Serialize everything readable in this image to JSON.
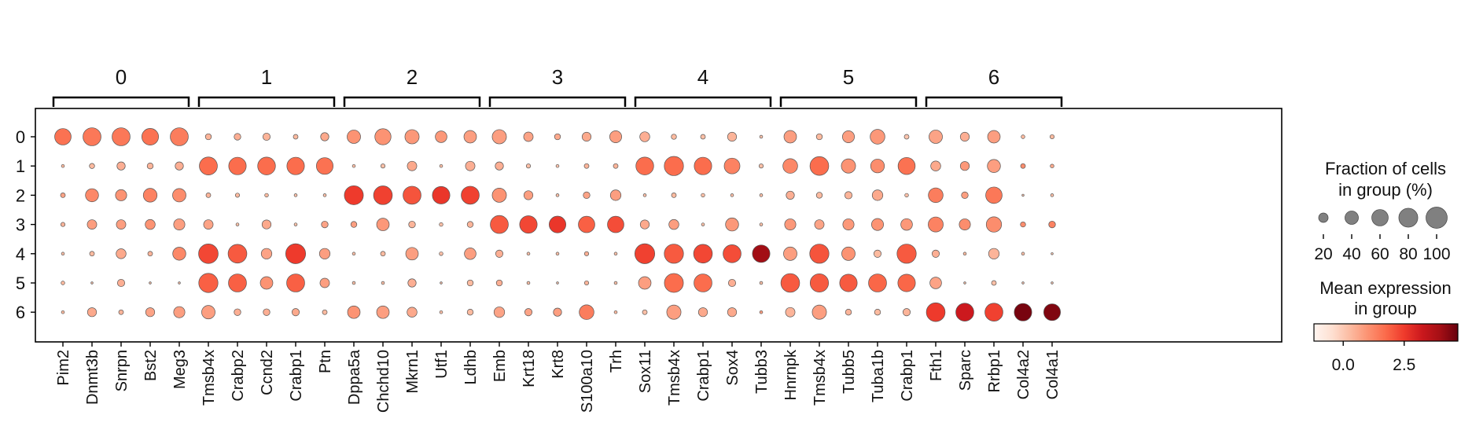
{
  "chart_data": {
    "type": "dotplot",
    "groups": [
      "0",
      "1",
      "2",
      "3",
      "4",
      "5",
      "6"
    ],
    "gene_groups": [
      {
        "label": "0",
        "genes": [
          "Pim2",
          "Dnmt3b",
          "Snrpn",
          "Bst2",
          "Meg3"
        ]
      },
      {
        "label": "1",
        "genes": [
          "Tmsb4x",
          "Crabp2",
          "Ccnd2",
          "Crabp1",
          "Ptn"
        ]
      },
      {
        "label": "2",
        "genes": [
          "Dppa5a",
          "Chchd10",
          "Mkrn1",
          "Utf1",
          "Ldhb"
        ]
      },
      {
        "label": "3",
        "genes": [
          "Emb",
          "Krt18",
          "Krt8",
          "S100a10",
          "Trh"
        ]
      },
      {
        "label": "4",
        "genes": [
          "Sox11",
          "Tmsb4x",
          "Crabp1",
          "Sox4",
          "Tubb3"
        ]
      },
      {
        "label": "5",
        "genes": [
          "Hnrnpk",
          "Tmsb4x",
          "Tubb5",
          "Tuba1b",
          "Crabp1"
        ]
      },
      {
        "label": "6",
        "genes": [
          "Fth1",
          "Sparc",
          "Rrbp1",
          "Col4a2",
          "Col4a1"
        ]
      }
    ],
    "rows": [
      {
        "group": "0",
        "fraction": [
          60,
          72,
          72,
          62,
          72,
          8,
          10,
          12,
          5,
          15,
          40,
          58,
          45,
          30,
          35,
          45,
          20,
          8,
          18,
          32,
          22,
          6,
          5,
          18,
          2,
          35,
          8,
          32,
          48,
          5,
          40,
          18,
          35,
          3,
          4
        ],
        "expression": [
          1.6,
          1.5,
          1.5,
          1.6,
          1.4,
          0.4,
          0.5,
          0.4,
          0.3,
          0.6,
          1.0,
          1.0,
          0.9,
          0.9,
          0.8,
          0.8,
          0.7,
          0.6,
          0.6,
          0.8,
          0.5,
          0.3,
          0.2,
          0.4,
          0.1,
          0.8,
          0.3,
          0.8,
          0.9,
          0.1,
          0.7,
          0.5,
          0.8,
          0.3,
          0.3
        ]
      },
      {
        "group": "1",
        "fraction": [
          2,
          6,
          15,
          8,
          15,
          72,
          68,
          70,
          68,
          62,
          2,
          4,
          20,
          2,
          20,
          15,
          4,
          2,
          5,
          5,
          70,
          82,
          68,
          55,
          4,
          48,
          78,
          45,
          42,
          65,
          22,
          18,
          38,
          5,
          3
        ],
        "expression": [
          0.3,
          0.3,
          0.5,
          0.4,
          0.5,
          1.7,
          1.7,
          1.7,
          1.7,
          1.6,
          0.2,
          0.2,
          0.6,
          0.2,
          0.5,
          0.5,
          0.2,
          0.1,
          0.4,
          0.4,
          1.7,
          1.7,
          1.7,
          1.3,
          0.2,
          1.2,
          1.7,
          1.0,
          1.1,
          1.6,
          0.6,
          0.9,
          0.8,
          1.1,
          0.6
        ]
      },
      {
        "group": "2",
        "fraction": [
          5,
          38,
          28,
          42,
          40,
          5,
          4,
          3,
          2,
          2,
          80,
          78,
          72,
          68,
          72,
          45,
          18,
          2,
          10,
          25,
          2,
          5,
          3,
          2,
          2,
          15,
          8,
          12,
          25,
          3,
          48,
          10,
          60,
          1,
          2
        ],
        "expression": [
          0.7,
          1.2,
          1.0,
          1.3,
          1.1,
          0.4,
          0.3,
          0.3,
          0.2,
          0.2,
          2.5,
          2.4,
          2.1,
          2.6,
          2.4,
          1.0,
          0.8,
          0.2,
          0.7,
          0.8,
          0.2,
          0.3,
          0.2,
          0.2,
          0.2,
          0.5,
          0.3,
          0.4,
          0.6,
          0.2,
          1.4,
          0.8,
          1.5,
          0.1,
          0.2
        ]
      },
      {
        "group": "3",
        "fraction": [
          4,
          20,
          20,
          22,
          28,
          20,
          2,
          18,
          2,
          10,
          8,
          35,
          10,
          3,
          8,
          72,
          68,
          62,
          60,
          60,
          18,
          22,
          2,
          38,
          2,
          28,
          20,
          28,
          32,
          30,
          50,
          28,
          52,
          6,
          10
        ],
        "expression": [
          0.4,
          0.8,
          0.8,
          1.0,
          0.8,
          0.7,
          0.2,
          0.6,
          0.2,
          0.7,
          0.8,
          0.9,
          0.4,
          0.2,
          0.4,
          2.0,
          2.3,
          2.6,
          1.9,
          2.2,
          0.6,
          0.8,
          0.2,
          0.9,
          0.2,
          0.9,
          0.7,
          0.9,
          1.0,
          0.9,
          1.3,
          1.1,
          1.1,
          1.1,
          1.3
        ]
      },
      {
        "group": "4",
        "fraction": [
          2,
          5,
          22,
          5,
          38,
          85,
          78,
          25,
          88,
          25,
          2,
          5,
          35,
          3,
          30,
          12,
          2,
          2,
          4,
          2,
          88,
          82,
          78,
          72,
          68,
          40,
          82,
          40,
          12,
          82,
          12,
          2,
          25,
          2,
          1
        ],
        "expression": [
          0.2,
          0.3,
          0.6,
          0.4,
          1.2,
          2.3,
          2.0,
          0.7,
          2.5,
          0.8,
          0.2,
          0.3,
          0.8,
          0.2,
          0.8,
          0.5,
          0.2,
          0.2,
          0.5,
          0.2,
          2.4,
          2.0,
          2.3,
          2.2,
          4.0,
          0.8,
          2.1,
          1.0,
          0.3,
          2.0,
          0.5,
          0.3,
          0.4,
          0.2,
          0.1
        ]
      },
      {
        "group": "5",
        "fraction": [
          3,
          1,
          12,
          1,
          1,
          82,
          72,
          35,
          72,
          20,
          2,
          2,
          15,
          1,
          8,
          8,
          2,
          1,
          4,
          2,
          35,
          80,
          72,
          12,
          2,
          78,
          75,
          68,
          72,
          68,
          30,
          1,
          5,
          1,
          1
        ],
        "expression": [
          0.3,
          0.2,
          0.5,
          0.2,
          0.2,
          1.9,
          1.9,
          1.0,
          1.9,
          0.8,
          0.2,
          0.2,
          0.5,
          0.2,
          0.3,
          0.5,
          0.2,
          0.1,
          0.4,
          0.2,
          0.8,
          1.7,
          1.7,
          0.5,
          0.2,
          2.0,
          2.0,
          2.0,
          1.8,
          1.8,
          0.7,
          0.2,
          0.2,
          0.1,
          0.1
        ]
      },
      {
        "group": "6",
        "fraction": [
          2,
          18,
          5,
          18,
          28,
          40,
          10,
          10,
          12,
          5,
          35,
          35,
          22,
          2,
          8,
          25,
          12,
          15,
          48,
          2,
          5,
          45,
          18,
          18,
          2,
          20,
          45,
          8,
          8,
          12,
          78,
          72,
          72,
          68,
          62
        ],
        "expression": [
          0.3,
          0.6,
          0.4,
          0.7,
          0.8,
          0.8,
          0.5,
          0.5,
          0.6,
          0.3,
          1.0,
          0.8,
          0.6,
          0.2,
          0.3,
          0.7,
          0.7,
          0.8,
          1.4,
          0.3,
          0.2,
          0.8,
          0.6,
          0.6,
          0.8,
          0.4,
          0.8,
          0.4,
          0.3,
          0.4,
          2.5,
          3.2,
          2.4,
          4.5,
          4.4
        ]
      }
    ],
    "size_legend": {
      "title_line1": "Fraction of cells",
      "title_line2": "in group (%)",
      "values": [
        20,
        40,
        60,
        80,
        100
      ],
      "tick_labels": [
        "20",
        "40",
        "60",
        "80",
        "100"
      ]
    },
    "color_legend": {
      "title_line1": "Mean expression",
      "title_line2": "in group",
      "vmin": -1.2,
      "vmax": 4.7,
      "ticks": [
        0.0,
        2.5
      ],
      "tick_labels": [
        "0.0",
        "2.5"
      ],
      "colormap": "Reds",
      "colors": [
        "#fff5f0",
        "#fee0d2",
        "#fcbba1",
        "#fc9272",
        "#fb6a4a",
        "#ef3b2c",
        "#cb181d",
        "#a50f15",
        "#67000d"
      ]
    },
    "dot_edge_color": "#555555",
    "legend_dot_color": "#808080",
    "grid": false
  }
}
